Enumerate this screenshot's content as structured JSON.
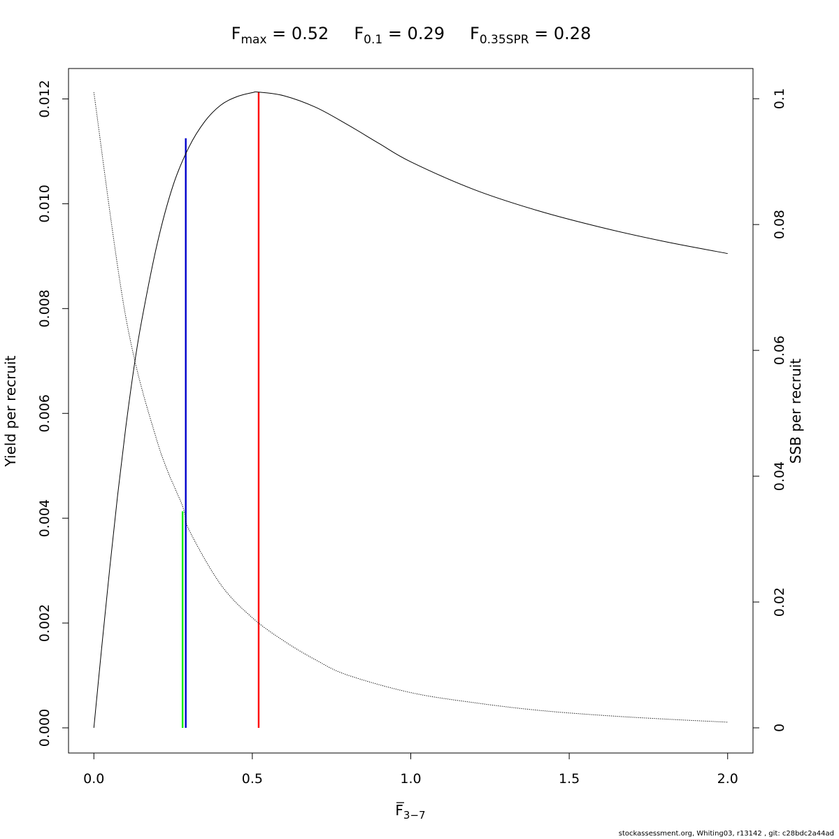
{
  "chart_data": {
    "type": "line",
    "title": {
      "fmax": {
        "base": "F",
        "sub": "max",
        "rest": " = 0.52"
      },
      "f01": {
        "base": "F",
        "sub": "0.1",
        "rest": " = 0.29"
      },
      "fspr": {
        "base": "F",
        "sub": "0.35SPR",
        "rest": " = 0.28"
      }
    },
    "xlabel": {
      "base": "F",
      "sub": "3−7"
    },
    "ylabel_left": "Yield per recruit",
    "ylabel_right": "SSB per recruit",
    "xlim": [
      -0.08,
      2.08
    ],
    "ylim_left": [
      -0.00048,
      0.01258
    ],
    "ylim_right": [
      -0.004,
      0.1048
    ],
    "x_ticks": [
      {
        "value": 0.0,
        "label": "0.0"
      },
      {
        "value": 0.5,
        "label": "0.5"
      },
      {
        "value": 1.0,
        "label": "1.0"
      },
      {
        "value": 1.5,
        "label": "1.5"
      },
      {
        "value": 2.0,
        "label": "2.0"
      }
    ],
    "y_ticks_left": [
      {
        "value": 0.0,
        "label": "0.000"
      },
      {
        "value": 0.002,
        "label": "0.002"
      },
      {
        "value": 0.004,
        "label": "0.004"
      },
      {
        "value": 0.006,
        "label": "0.006"
      },
      {
        "value": 0.008,
        "label": "0.008"
      },
      {
        "value": 0.01,
        "label": "0.010"
      },
      {
        "value": 0.012,
        "label": "0.012"
      }
    ],
    "y_ticks_right": [
      {
        "value": 0.0,
        "label": "0"
      },
      {
        "value": 0.02,
        "label": "0.02"
      },
      {
        "value": 0.04,
        "label": "0.04"
      },
      {
        "value": 0.06,
        "label": "0.06"
      },
      {
        "value": 0.08,
        "label": "0.08"
      },
      {
        "value": 0.1,
        "label": "0.1"
      }
    ],
    "grid": false,
    "legend": "none",
    "series": [
      {
        "axis": "left",
        "style": "solid",
        "color": "#000000",
        "x": [
          0,
          0.025,
          0.05,
          0.075,
          0.1,
          0.125,
          0.15,
          0.2,
          0.25,
          0.3,
          0.35,
          0.4,
          0.45,
          0.5,
          0.52,
          0.6,
          0.7,
          0.8,
          0.9,
          1.0,
          1.2,
          1.4,
          1.6,
          1.8,
          2.0
        ],
        "y": [
          0.0,
          0.00155,
          0.00304,
          0.00444,
          0.0057,
          0.00681,
          0.00774,
          0.00924,
          0.01035,
          0.01108,
          0.01157,
          0.01188,
          0.01204,
          0.01212,
          0.01213,
          0.01206,
          0.01184,
          0.01151,
          0.01115,
          0.0108,
          0.01027,
          0.00987,
          0.00955,
          0.00928,
          0.00905
        ]
      },
      {
        "axis": "right",
        "style": "dotted",
        "color": "#000000",
        "x": [
          0,
          0.1,
          0.2,
          0.28,
          0.3,
          0.4,
          0.5,
          0.6,
          0.7,
          0.8,
          1.0,
          1.2,
          1.4,
          1.6,
          1.8,
          2.0
        ],
        "y": [
          0.101,
          0.0655,
          0.0455,
          0.0352,
          0.0315,
          0.0228,
          0.0175,
          0.0138,
          0.0108,
          0.0084,
          0.0056,
          0.004,
          0.0028,
          0.002,
          0.0014,
          0.0009
        ]
      }
    ],
    "reference_lines": [
      {
        "name": "Fmax",
        "x": 0.52,
        "y_top": 0.01213,
        "color": "#ff0000"
      },
      {
        "name": "F0.1",
        "x": 0.29,
        "y_top": 0.01125,
        "color": "#0000cc"
      },
      {
        "name": "F0.35SPR",
        "x": 0.28,
        "y_top": 0.00413,
        "color": "#00ee00"
      }
    ],
    "footer": "stockassessment.org, Whiting03, r13142 , git: c28bdc2a44ad"
  }
}
